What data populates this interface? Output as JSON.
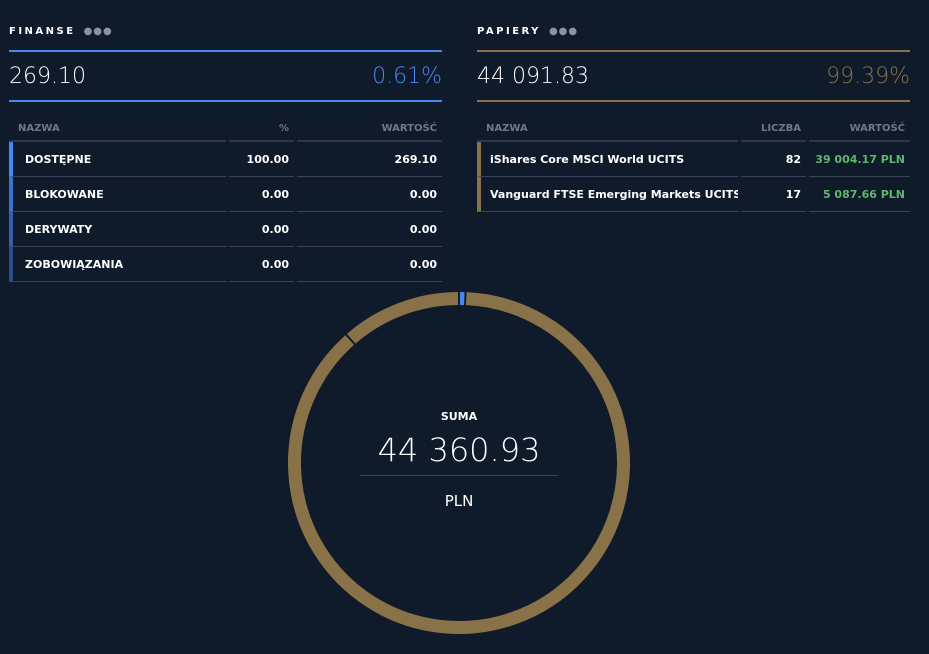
{
  "colors": {
    "background": "#0f1a2a",
    "finance": "#4a86f0",
    "securities": "#8a7248",
    "positive": "#5db86c"
  },
  "finanse": {
    "title": "FINANSE",
    "menu_icon": "more-dots-icon",
    "total": "269.10",
    "percent": "0.61%",
    "headers": [
      "NAZWA",
      "%",
      "WARTOŚĆ"
    ],
    "rows": [
      {
        "name": "DOSTĘPNE",
        "pct": "100.00",
        "value": "269.10"
      },
      {
        "name": "BLOKOWANE",
        "pct": "0.00",
        "value": "0.00"
      },
      {
        "name": "DERYWATY",
        "pct": "0.00",
        "value": "0.00"
      },
      {
        "name": "ZOBOWIĄZANIA",
        "pct": "0.00",
        "value": "0.00"
      }
    ]
  },
  "papiery": {
    "title": "PAPIERY",
    "menu_icon": "more-dots-icon",
    "total": "44 091.83",
    "percent": "99.39%",
    "headers": [
      "NAZWA",
      "LICZBA",
      "WARTOŚĆ"
    ],
    "rows": [
      {
        "name": "iShares Core MSCI World UCITS",
        "count": "82",
        "value": "39 004.17 PLN"
      },
      {
        "name": "Vanguard FTSE Emerging Markets UCITS ETF",
        "count": "17",
        "value": "5 087.66 PLN"
      }
    ]
  },
  "summary": {
    "label": "SUMA",
    "value": "44 360.93",
    "currency": "PLN",
    "segments": [
      {
        "value": 269.1,
        "color": "#4a86f0"
      },
      {
        "value": 39004.17,
        "color": "#8a7248"
      },
      {
        "value": 5087.66,
        "color": "#8a7248"
      }
    ]
  }
}
